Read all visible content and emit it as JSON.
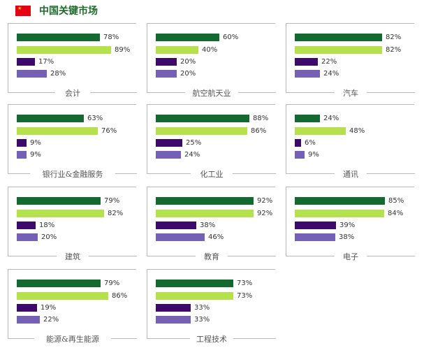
{
  "header": {
    "title": "中国关键市场"
  },
  "colors": {
    "series": [
      "#13692f",
      "#b5e14c",
      "#3d0a6b",
      "#7461b6"
    ],
    "flag": "#e60012",
    "title": "#1e6b2b"
  },
  "chart_data": [
    {
      "type": "bar",
      "orientation": "horizontal",
      "category": "会计",
      "values": [
        78,
        89,
        17,
        28
      ],
      "unit": "%"
    },
    {
      "type": "bar",
      "orientation": "horizontal",
      "category": "航空航天业",
      "values": [
        60,
        40,
        20,
        20
      ],
      "unit": "%"
    },
    {
      "type": "bar",
      "orientation": "horizontal",
      "category": "汽车",
      "values": [
        82,
        82,
        22,
        24
      ],
      "unit": "%"
    },
    {
      "type": "bar",
      "orientation": "horizontal",
      "category": "银行业&金融服务",
      "values": [
        63,
        76,
        9,
        9
      ],
      "unit": "%"
    },
    {
      "type": "bar",
      "orientation": "horizontal",
      "category": "化工业",
      "values": [
        88,
        86,
        25,
        24
      ],
      "unit": "%"
    },
    {
      "type": "bar",
      "orientation": "horizontal",
      "category": "通讯",
      "values": [
        24,
        48,
        6,
        9
      ],
      "unit": "%"
    },
    {
      "type": "bar",
      "orientation": "horizontal",
      "category": "建筑",
      "values": [
        79,
        82,
        18,
        20
      ],
      "unit": "%"
    },
    {
      "type": "bar",
      "orientation": "horizontal",
      "category": "教育",
      "values": [
        92,
        92,
        38,
        46
      ],
      "unit": "%"
    },
    {
      "type": "bar",
      "orientation": "horizontal",
      "category": "电子",
      "values": [
        85,
        84,
        39,
        38
      ],
      "unit": "%"
    },
    {
      "type": "bar",
      "orientation": "horizontal",
      "category": "能源&再生能源",
      "values": [
        79,
        86,
        19,
        22
      ],
      "unit": "%"
    },
    {
      "type": "bar",
      "orientation": "horizontal",
      "category": "工程技术",
      "values": [
        73,
        73,
        33,
        33
      ],
      "unit": "%"
    }
  ]
}
